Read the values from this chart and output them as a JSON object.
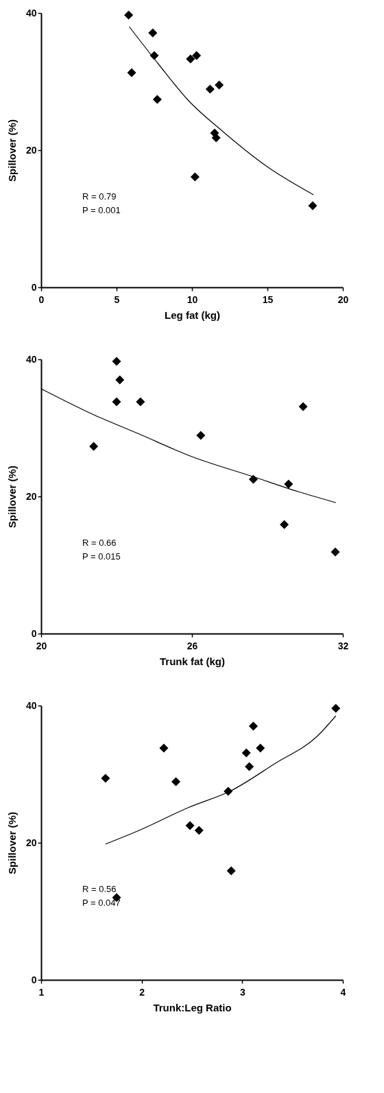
{
  "chart_data": [
    {
      "type": "scatter",
      "xlabel": "Leg fat (kg)",
      "ylabel": "Spillover (%)",
      "xlim": [
        0,
        20
      ],
      "xticks": [
        0,
        5,
        10,
        15,
        20
      ],
      "ylim": [
        0,
        40
      ],
      "yticks": [
        0,
        20,
        40
      ],
      "grid": false,
      "annotations": [
        "R = 0.79",
        "P = 0.001"
      ],
      "series": [
        {
          "color": "#000000",
          "marker": "diamond",
          "x": [
            5.8,
            7.4,
            7.5,
            6.0,
            7.7,
            9.9,
            10.3,
            11.2,
            11.8,
            11.5,
            11.6,
            10.2,
            18.0
          ],
          "values": [
            39.7,
            37.1,
            33.8,
            31.3,
            27.4,
            33.3,
            33.8,
            28.9,
            29.5,
            22.5,
            21.8,
            16.1,
            11.9
          ]
        },
        {
          "type": "line",
          "color": "#000000",
          "x": [
            5.84,
            7.76,
            9.78,
            11.95,
            14.98,
            18.05
          ],
          "values": [
            38.0,
            32.6,
            27.2,
            22.9,
            17.6,
            13.5
          ]
        }
      ]
    },
    {
      "type": "scatter",
      "xlabel": "Trunk fat (kg)",
      "ylabel": "Spillover (%)",
      "xlim": [
        20,
        32
      ],
      "xticks": [
        20,
        26,
        32
      ],
      "ylim": [
        0,
        40
      ],
      "yticks": [
        0,
        20,
        40
      ],
      "grid": false,
      "annotations": [
        "R = 0.66",
        "P = 0.015"
      ],
      "series": [
        {
          "color": "#000000",
          "marker": "diamond",
          "x": [
            23.0,
            23.13,
            23.0,
            23.95,
            22.09,
            26.35,
            30.42,
            28.44,
            29.84,
            29.67,
            31.7
          ],
          "values": [
            39.7,
            37.0,
            33.8,
            33.8,
            27.3,
            28.9,
            33.1,
            22.5,
            21.8,
            15.9,
            11.9
          ]
        },
        {
          "type": "line",
          "color": "#000000",
          "x": [
            20.0,
            22.1,
            23.84,
            26.0,
            28.42,
            30.23,
            31.72
          ],
          "values": [
            35.7,
            31.9,
            29.2,
            25.8,
            22.9,
            20.7,
            19.1
          ]
        }
      ]
    },
    {
      "type": "scatter",
      "xlabel": "Trunk:Leg Ratio",
      "ylabel": "Spillover (%)",
      "xlim": [
        1,
        4
      ],
      "xticks": [
        1,
        2,
        3,
        4
      ],
      "ylim": [
        0,
        40
      ],
      "yticks": [
        0,
        20,
        40
      ],
      "grid": false,
      "annotations": [
        "R = 0.56",
        "P = 0.047"
      ],
      "series": [
        {
          "color": "#000000",
          "marker": "diamond",
          "x": [
            3.93,
            3.11,
            3.18,
            3.04,
            3.07,
            2.22,
            1.64,
            2.34,
            2.86,
            2.48,
            2.57,
            2.89,
            1.75
          ],
          "values": [
            39.6,
            37.0,
            33.8,
            33.1,
            31.1,
            33.8,
            29.4,
            28.9,
            27.5,
            22.5,
            21.8,
            15.9,
            12.0
          ]
        },
        {
          "type": "line",
          "color": "#000000",
          "x": [
            1.64,
            1.99,
            2.46,
            2.89,
            3.32,
            3.75,
            3.93
          ],
          "values": [
            19.8,
            21.9,
            25.1,
            27.6,
            31.5,
            35.6,
            38.5
          ]
        }
      ]
    }
  ]
}
